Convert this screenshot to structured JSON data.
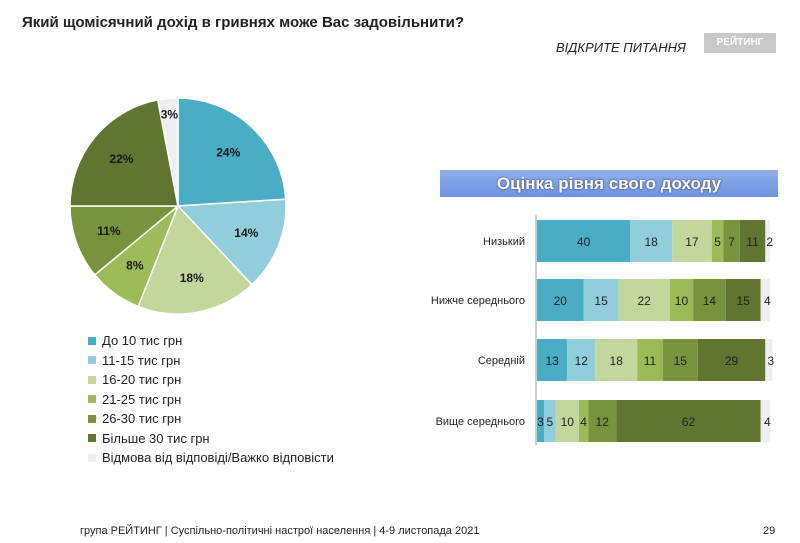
{
  "header": {
    "title": "Який щомісячний дохід в гривнях може Вас задовільнити?",
    "subtitle": "ВІДКРИТЕ ПИТАННЯ",
    "logo": "РЕЙТИНГ"
  },
  "footer": {
    "text": "група РЕЙТИНГ | Суспільно-політичні настрої населення  | 4-9 листопада 2021",
    "page": "29"
  },
  "colors": [
    "#4BACC6",
    "#92CDDC",
    "#C3D69B",
    "#9BBB59",
    "#77933C",
    "#5F7530",
    "#EEEEEE"
  ],
  "chart_data": [
    {
      "type": "pie",
      "categories": [
        "До 10 тис грн",
        "11-15 тис грн",
        "16-20 тис грн",
        "21-25 тис грн",
        "26-30 тис грн",
        "Більше 30 тис грн",
        "Відмова від відповіді/Важко відповісти"
      ],
      "values": [
        24,
        14,
        18,
        8,
        11,
        22,
        3
      ],
      "labels": [
        "24%",
        "14%",
        "18%",
        "8%",
        "11%",
        "22%",
        "3%"
      ],
      "legend": "bottom-left"
    },
    {
      "type": "bar",
      "orientation": "horizontal",
      "stacked": true,
      "title": "Оцінка рівня свого доходу",
      "categories": [
        "Низький",
        "Нижче середнього",
        "Середній",
        "Вище середнього"
      ],
      "series": [
        [
          40,
          18,
          17,
          5,
          7,
          11,
          2
        ],
        [
          20,
          15,
          22,
          10,
          14,
          15,
          4
        ],
        [
          13,
          12,
          18,
          11,
          15,
          29,
          3
        ],
        [
          3,
          5,
          10,
          4,
          12,
          62,
          4
        ]
      ]
    }
  ]
}
